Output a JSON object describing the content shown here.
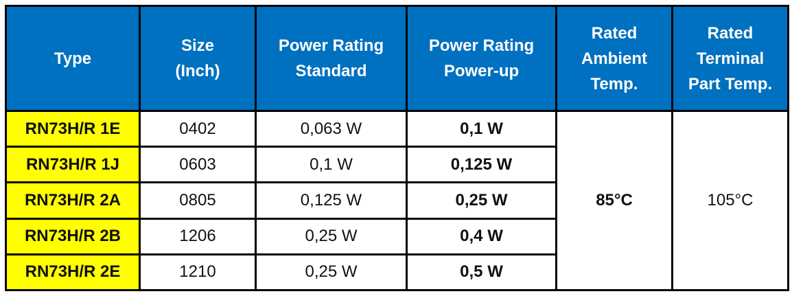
{
  "table": {
    "headers": [
      [
        "Type"
      ],
      [
        "Size",
        "(Inch)"
      ],
      [
        "Power Rating",
        "Standard"
      ],
      [
        "Power Rating",
        "Power-up"
      ],
      [
        "Rated",
        "Ambient",
        "Temp."
      ],
      [
        "Rated",
        "Terminal",
        "Part Temp."
      ]
    ],
    "rows": [
      [
        "RN73H/R 1E",
        "0402",
        "0,063 W",
        "0,1 W"
      ],
      [
        "RN73H/R 1J",
        "0603",
        "0,1 W",
        "0,125 W"
      ],
      [
        "RN73H/R 2A",
        "0805",
        "0,125 W",
        "0,25 W"
      ],
      [
        "RN73H/R 2B",
        "1206",
        "0,25 W",
        "0,4 W"
      ],
      [
        "RN73H/R 2E",
        "1210",
        "0,25 W",
        "0,5 W"
      ]
    ],
    "ambient_temp": "85°C",
    "terminal_temp": "105°C"
  }
}
